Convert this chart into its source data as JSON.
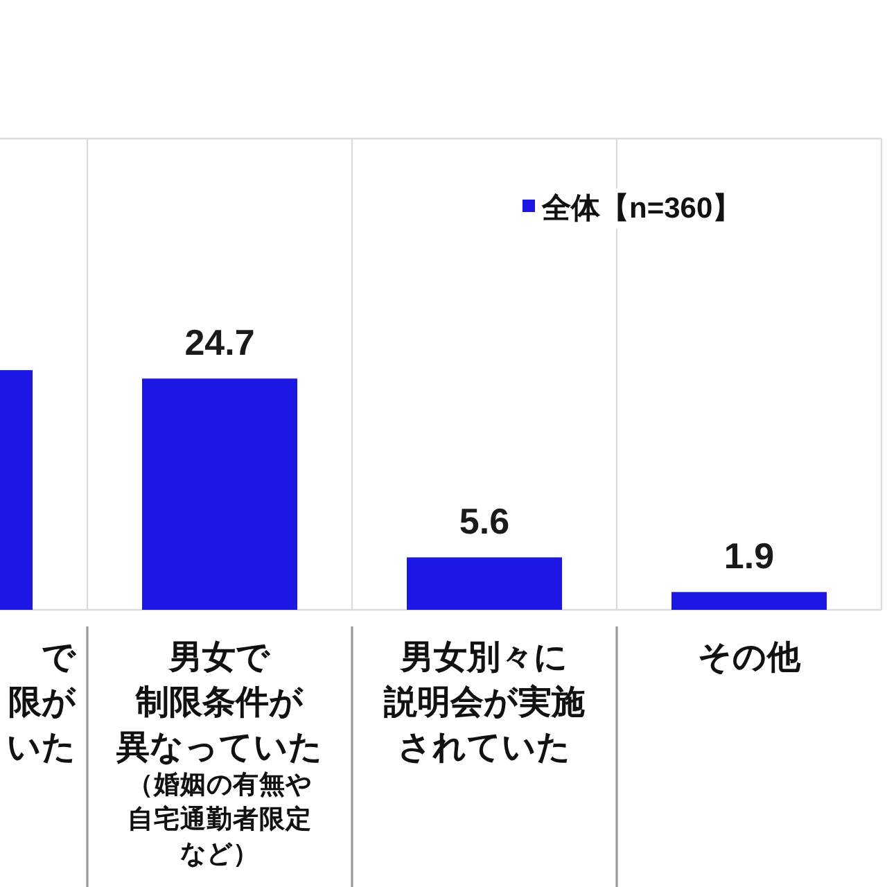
{
  "chart_data": {
    "type": "bar",
    "categories": [
      "で限がいた",
      "男女で制限条件が異なっていた（婚姻の有無や自宅通勤者限定など）",
      "男女別々に説明会が実施されていた",
      "その他"
    ],
    "series": [
      {
        "name": "全体【n=360】",
        "color": "#1c17e4",
        "values": [
          25.6,
          24.7,
          5.6,
          1.9
        ],
        "value_labels": [
          null,
          "24.7",
          "5.6",
          "1.9"
        ]
      }
    ],
    "grid": "x",
    "legend": "top right"
  }
}
